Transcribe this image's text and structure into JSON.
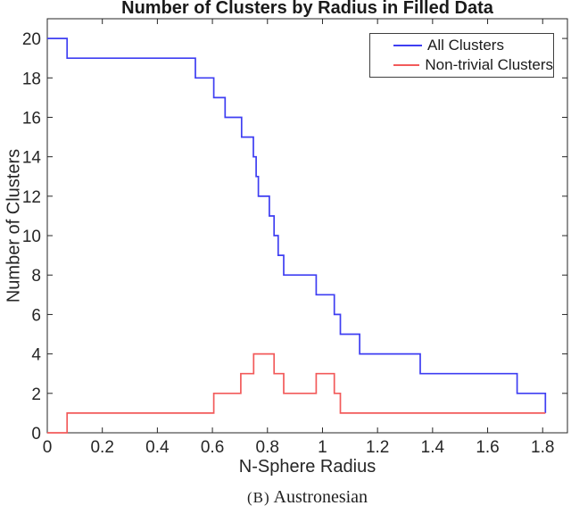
{
  "page": {
    "background": "#ffffff"
  },
  "caption": {
    "label": "(B)",
    "text": "Austronesian"
  },
  "chart_data": {
    "type": "line",
    "line_style": "step-after",
    "title": "Number of Clusters by Radius in Filled Data",
    "xlabel": "N-Sphere Radius",
    "ylabel": "Number of Clusters",
    "xlim": [
      0,
      1.89
    ],
    "ylim": [
      0,
      21
    ],
    "grid": false,
    "axis_color": "#262626",
    "tick_label_color": "#262626",
    "xticks": [
      0,
      0.2,
      0.4,
      0.6,
      0.8,
      1,
      1.2,
      1.4,
      1.6,
      1.8
    ],
    "xtick_labels": [
      "0",
      "0.2",
      "0.4",
      "0.6",
      "0.8",
      "1",
      "1.2",
      "1.4",
      "1.6",
      "1.8"
    ],
    "yticks": [
      0,
      2,
      4,
      6,
      8,
      10,
      12,
      14,
      16,
      18,
      20
    ],
    "ytick_labels": [
      "0",
      "2",
      "4",
      "6",
      "8",
      "10",
      "12",
      "14",
      "16",
      "18",
      "20"
    ],
    "legend": {
      "position": "top-right"
    },
    "series": [
      {
        "name": "All Clusters",
        "color": "#3e3ef2",
        "points": [
          [
            0,
            20
          ],
          [
            0.072,
            19
          ],
          [
            0.538,
            18
          ],
          [
            0.605,
            17
          ],
          [
            0.646,
            16
          ],
          [
            0.706,
            15
          ],
          [
            0.749,
            14
          ],
          [
            0.759,
            13
          ],
          [
            0.767,
            12
          ],
          [
            0.807,
            11
          ],
          [
            0.824,
            10
          ],
          [
            0.839,
            9
          ],
          [
            0.859,
            8
          ],
          [
            0.977,
            7
          ],
          [
            1.043,
            6
          ],
          [
            1.065,
            5
          ],
          [
            1.135,
            4
          ],
          [
            1.355,
            3
          ],
          [
            1.707,
            2
          ],
          [
            1.81,
            1
          ]
        ]
      },
      {
        "name": "Non-trivial Clusters",
        "color": "#f25a5a",
        "points": [
          [
            0,
            0
          ],
          [
            0.072,
            1
          ],
          [
            0.605,
            2
          ],
          [
            0.703,
            3
          ],
          [
            0.75,
            4
          ],
          [
            0.824,
            3
          ],
          [
            0.859,
            2
          ],
          [
            0.977,
            3
          ],
          [
            1.043,
            2
          ],
          [
            1.065,
            1
          ],
          [
            1.81,
            1
          ]
        ]
      }
    ]
  }
}
